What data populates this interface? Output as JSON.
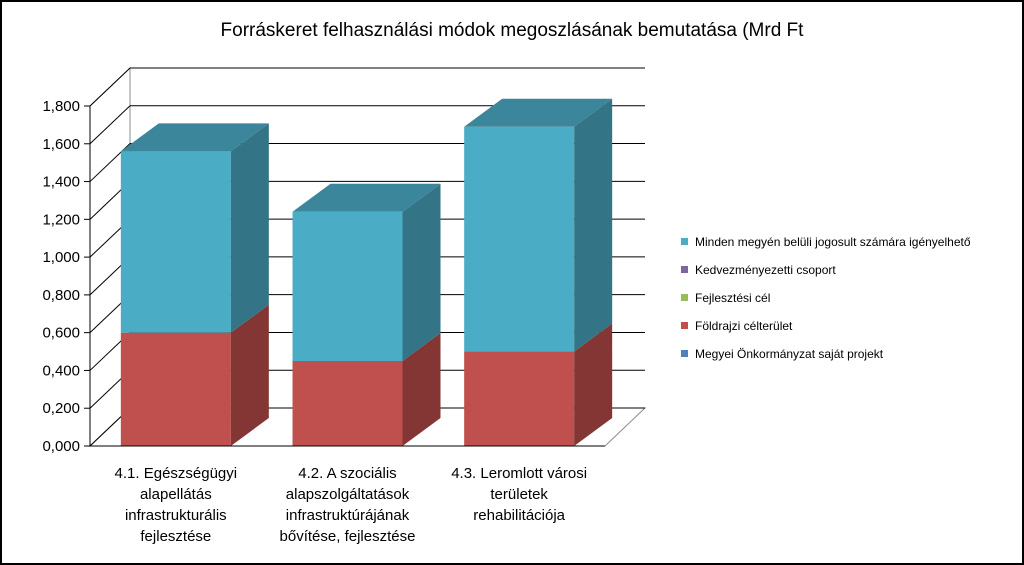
{
  "chart_data": {
    "type": "bar",
    "stacked": true,
    "three_d": true,
    "title": "Forráskeret felhasználási módok megoszlásának bemutatása (Mrd Ft",
    "categories": [
      [
        "4.1. Egészségügyi",
        "alapellátás",
        "infrastrukturális",
        "fejlesztése"
      ],
      [
        "4.2. A szociális",
        "alapszolgáltatások",
        "infrastruktúrájának",
        "bővítése, fejlesztése"
      ],
      [
        "4.3. Leromlott városi",
        "területek",
        "rehabilitációja"
      ]
    ],
    "y_ticks": [
      "0,000",
      "0,200",
      "0,400",
      "0,600",
      "0,800",
      "1,000",
      "1,200",
      "1,400",
      "1,600",
      "1,800"
    ],
    "ylim": [
      0,
      1.8
    ],
    "grid": true,
    "legend_position": "right",
    "series": [
      {
        "name": "Megyei Önkormányzat saját projekt",
        "color": "#4F81BD",
        "values": [
          0,
          0,
          0
        ]
      },
      {
        "name": "Földrajzi célterület",
        "color": "#C0504D",
        "values": [
          0.6,
          0.45,
          0.5
        ]
      },
      {
        "name": "Fejlesztési cél",
        "color": "#9BBB59",
        "values": [
          0,
          0,
          0
        ]
      },
      {
        "name": "Kedvezményezetti csoport",
        "color": "#8064A2",
        "values": [
          0,
          0,
          0
        ]
      },
      {
        "name": "Minden megyén belüli jogosult számára igényelhető",
        "color": "#4BACC6",
        "values": [
          0.96,
          0.79,
          1.19
        ]
      }
    ],
    "legend_order": [
      4,
      3,
      2,
      1,
      0
    ]
  }
}
